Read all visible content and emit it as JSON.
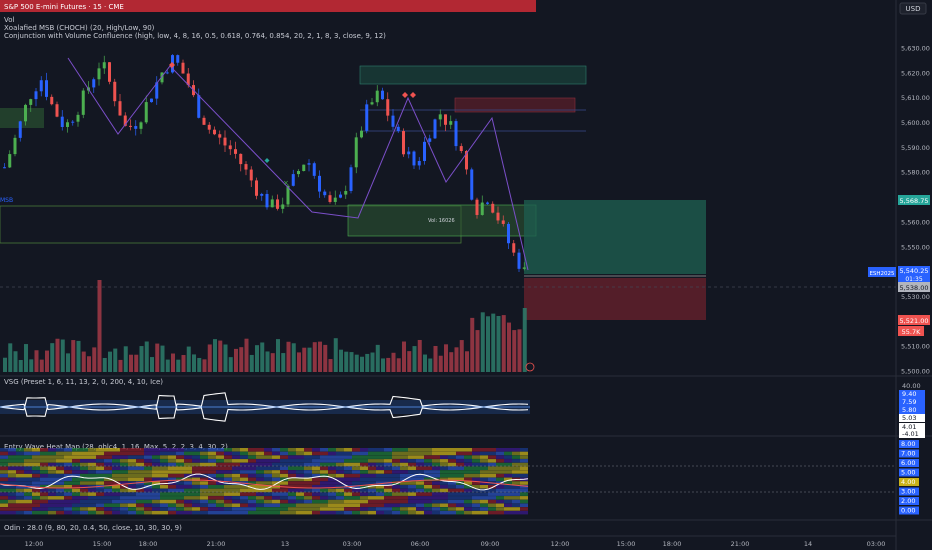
{
  "header": {
    "symbol_title": "S&P 500 E-mini Futures · 15 · CME",
    "currency_button": "USD"
  },
  "legend": {
    "vol": "Vol",
    "msb": "Xoalafied MSB (CHOCH) (20, High/Low, 90)",
    "confluence": "Conjunction with Volume Confluence (high, low, 4, 8, 16, 0.5, 0.618, 0.764, 0.854, 20, 2, 1, 8, 3, close, 9, 12)",
    "vsg": "VSG (Preset 1, 6, 11, 13, 2, 0, 200, 4, 10, Ice)",
    "entry": "Entry Wave Heat Map (28, ohlc4, 1, 16, Max, 5, 2, 2, 3, 4, 30, 2)",
    "odin": "Odin · 28.0 (9, 80, 20, 0.4, 50, close, 10, 30, 30, 9)"
  },
  "annotations": {
    "msb_label": "MSB",
    "vol_box": "Vol: 16026"
  },
  "price_axis": {
    "ticks": [
      "5,630.00",
      "5,620.00",
      "5,610.00",
      "5,600.00",
      "5,590.00",
      "5,580.00",
      "5,570.00",
      "5,560.00",
      "5,550.00",
      "5,540.00",
      "5,530.00",
      "5,520.00",
      "5,510.00",
      "5,500.00"
    ],
    "tick_values": [
      5630,
      5620,
      5610,
      5600,
      5590,
      5580,
      5570,
      5560,
      5550,
      5540,
      5530,
      5520,
      5510,
      5500
    ]
  },
  "price_labels": {
    "target": "5,568.75",
    "symbol": "ESH2025",
    "last": "5,540.25",
    "countdown": "01:35",
    "entry": "5,538.00",
    "stop": "5,521.00",
    "volume": "55.7K"
  },
  "vsg_axis": [
    "40.00",
    "9.40",
    "7.59",
    "5.80",
    "5.03",
    "4.01",
    "-4.01"
  ],
  "heat_axis": [
    "8.00",
    "7.00",
    "6.00",
    "5.00",
    "4.00",
    "3.00",
    "2.00",
    "0.00"
  ],
  "time_axis": {
    "labels": [
      "12:00",
      "15:00",
      "18:00",
      "21:00",
      "13",
      "03:00",
      "06:00",
      "09:00",
      "12:00",
      "15:00",
      "18:00",
      "21:00",
      "14",
      "03:00"
    ]
  },
  "colors": {
    "bg": "#131722",
    "bull": "#4caf50",
    "bear": "#ef5350",
    "candle_blue": "#2962ff",
    "target_zone": "#1e5c4f",
    "stop_zone": "#5c1f2a",
    "title_bg": "#b22833"
  },
  "chart_data": {
    "type": "candlestick",
    "price_range": [
      5500,
      5640
    ],
    "levels": {
      "target": 5568.75,
      "last": 5540.25,
      "entry": 5538.0,
      "stop": 5521.0
    },
    "close_path": [
      5582,
      5595,
      5610,
      5618,
      5606,
      5598,
      5605,
      5615,
      5625,
      5612,
      5598,
      5600,
      5610,
      5620,
      5626,
      5618,
      5605,
      5597,
      5592,
      5588,
      5580,
      5572,
      5566,
      5568,
      5578,
      5586,
      5575,
      5566,
      5570,
      5590,
      5605,
      5612,
      5600,
      5590,
      5582,
      5595,
      5604,
      5598,
      5585,
      5565,
      5570,
      5560,
      5548,
      5540
    ]
  }
}
